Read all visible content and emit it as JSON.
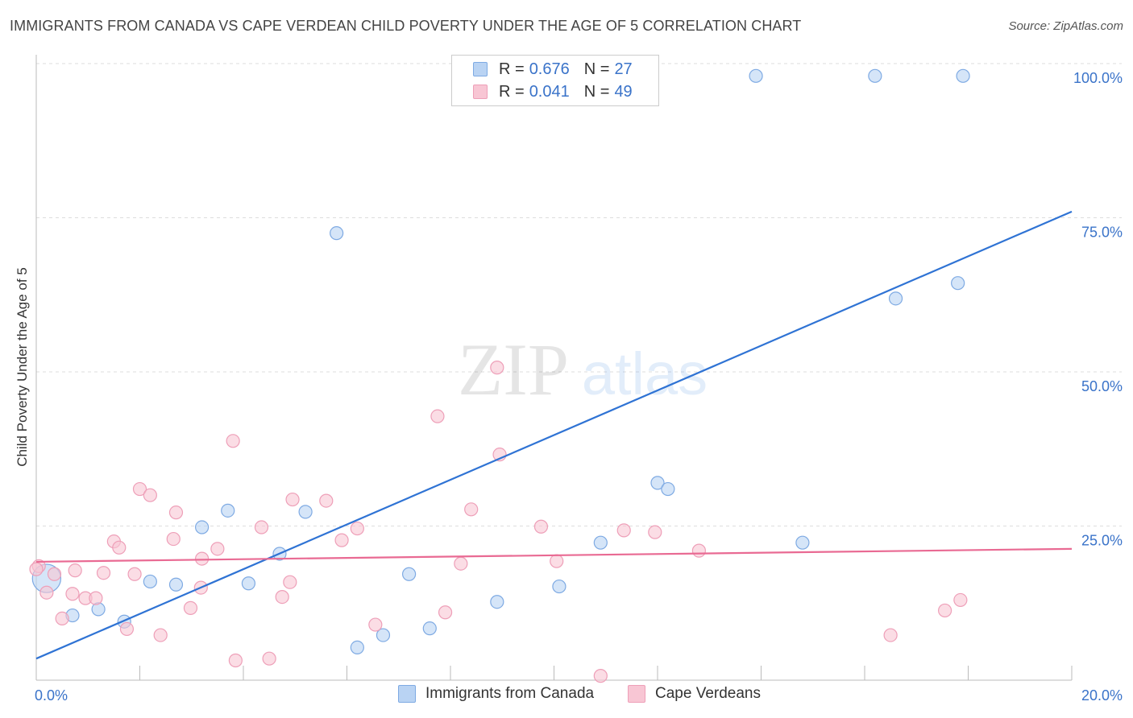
{
  "title": "IMMIGRANTS FROM CANADA VS CAPE VERDEAN CHILD POVERTY UNDER THE AGE OF 5 CORRELATION CHART",
  "source": "Source: ZipAtlas.com",
  "watermark": {
    "zip": "ZIP",
    "atlas": "atlas"
  },
  "legend_top": {
    "rows": [
      {
        "r_label": "R =",
        "r_value": "0.676",
        "n_label": "N =",
        "n_value": "27"
      },
      {
        "r_label": "R =",
        "r_value": "0.041",
        "n_label": "N =",
        "n_value": "49"
      }
    ]
  },
  "legend_bottom": {
    "items": [
      "Immigrants from Canada",
      "Cape Verdeans"
    ]
  },
  "colors": {
    "blue_fill": "#b9d3f3",
    "blue_stroke": "#7eaae3",
    "blue_line": "#2f73d4",
    "pink_fill": "#f8c6d4",
    "pink_stroke": "#ee9fb8",
    "pink_line": "#e96a93",
    "tick_text": "#3a73c9",
    "grid": "#dddddd"
  },
  "chart_data": {
    "type": "scatter",
    "title": "IMMIGRANTS FROM CANADA VS CAPE VERDEAN CHILD POVERTY UNDER THE AGE OF 5 CORRELATION CHART",
    "xlabel": "",
    "ylabel": "Child Poverty Under the Age of 5",
    "xlim": [
      0,
      20
    ],
    "ylim": [
      0,
      100
    ],
    "x_tick_labels": [
      {
        "v": 0,
        "label": "0.0%"
      },
      {
        "v": 20,
        "label": "20.0%"
      }
    ],
    "y_tick_labels": [
      {
        "v": 25,
        "label": "25.0%"
      },
      {
        "v": 50,
        "label": "50.0%"
      },
      {
        "v": 75,
        "label": "75.0%"
      },
      {
        "v": 100,
        "label": "100.0%"
      }
    ],
    "grid": true,
    "series": [
      {
        "name": "Immigrants from Canada",
        "color": "blue",
        "points": [
          [
            0.2,
            16.5,
            2.2
          ],
          [
            0.7,
            10.5,
            1
          ],
          [
            1.2,
            11.5,
            1
          ],
          [
            1.7,
            9.5,
            1
          ],
          [
            2.2,
            16.0,
            1
          ],
          [
            2.7,
            15.5,
            1
          ],
          [
            3.2,
            24.8,
            1
          ],
          [
            3.7,
            27.5,
            1
          ],
          [
            4.1,
            15.7,
            1
          ],
          [
            4.7,
            20.5,
            1
          ],
          [
            5.2,
            27.3,
            1
          ],
          [
            5.8,
            72.5,
            1
          ],
          [
            6.2,
            5.3,
            1
          ],
          [
            6.7,
            7.3,
            1
          ],
          [
            7.2,
            17.2,
            1
          ],
          [
            7.6,
            8.4,
            1
          ],
          [
            8.9,
            12.7,
            1
          ],
          [
            10.1,
            15.2,
            1
          ],
          [
            10.9,
            22.3,
            1
          ],
          [
            12.0,
            32.0,
            1
          ],
          [
            12.2,
            31.0,
            1
          ],
          [
            13.9,
            98.0,
            1
          ],
          [
            14.8,
            22.3,
            1
          ],
          [
            16.2,
            98.0,
            1
          ],
          [
            16.6,
            61.9,
            1
          ],
          [
            17.9,
            98.0,
            1
          ],
          [
            17.8,
            64.4,
            1
          ]
        ],
        "trend": [
          [
            0,
            3.5
          ],
          [
            20,
            76.0
          ]
        ]
      },
      {
        "name": "Cape Verdeans",
        "color": "pink",
        "points": [
          [
            0.05,
            18.5
          ],
          [
            0.2,
            14.2
          ],
          [
            0.35,
            17.2
          ],
          [
            0.5,
            10.0
          ],
          [
            0.7,
            14.0
          ],
          [
            0.75,
            17.8
          ],
          [
            0.95,
            13.3
          ],
          [
            1.15,
            13.3
          ],
          [
            1.3,
            17.4
          ],
          [
            1.5,
            22.5
          ],
          [
            1.6,
            21.5
          ],
          [
            1.75,
            8.3
          ],
          [
            1.9,
            17.2
          ],
          [
            2.0,
            31.0
          ],
          [
            2.2,
            30.0
          ],
          [
            2.4,
            7.3
          ],
          [
            2.65,
            22.9
          ],
          [
            2.7,
            27.2
          ],
          [
            2.98,
            11.7
          ],
          [
            3.18,
            15.0
          ],
          [
            3.2,
            19.7
          ],
          [
            3.5,
            21.3
          ],
          [
            3.8,
            38.8
          ],
          [
            3.85,
            3.2
          ],
          [
            4.35,
            24.8
          ],
          [
            4.5,
            3.5
          ],
          [
            4.75,
            13.5
          ],
          [
            4.9,
            15.9
          ],
          [
            4.95,
            29.3
          ],
          [
            5.6,
            29.1
          ],
          [
            5.9,
            22.7
          ],
          [
            6.2,
            24.6
          ],
          [
            6.55,
            9.0
          ],
          [
            7.75,
            42.8
          ],
          [
            7.9,
            11.0
          ],
          [
            8.2,
            18.9
          ],
          [
            8.4,
            27.7
          ],
          [
            8.9,
            50.7
          ],
          [
            8.95,
            36.6
          ],
          [
            9.75,
            24.9
          ],
          [
            10.05,
            19.3
          ],
          [
            10.9,
            0.7
          ],
          [
            11.35,
            24.3
          ],
          [
            11.95,
            24.0
          ],
          [
            12.8,
            21.0
          ],
          [
            16.5,
            7.3
          ],
          [
            17.55,
            11.3
          ],
          [
            17.85,
            13.0
          ],
          [
            0.0,
            18.0
          ]
        ],
        "trend": [
          [
            0,
            19.2
          ],
          [
            20,
            21.3
          ]
        ]
      }
    ]
  }
}
